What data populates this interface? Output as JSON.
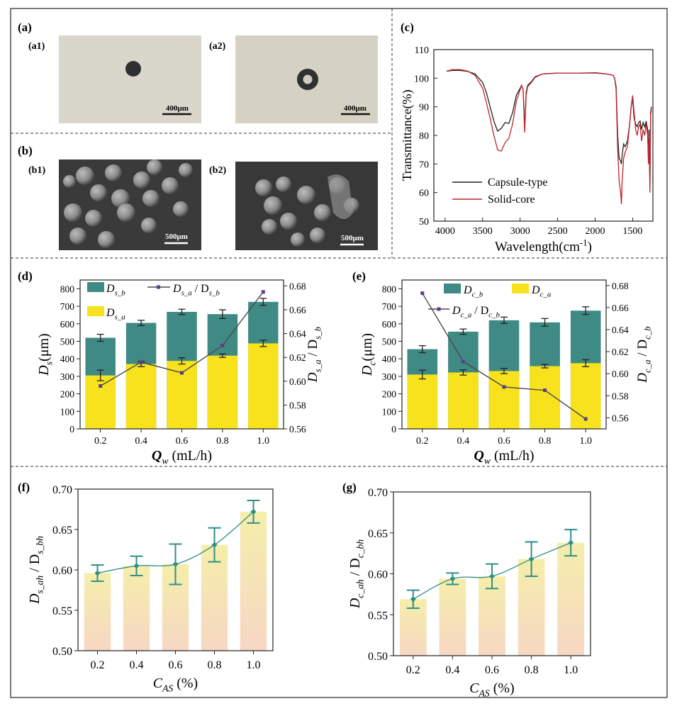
{
  "panels": {
    "a": "(a)",
    "a1": "(a1)",
    "a2": "(a2)",
    "b": "(b)",
    "b1": "(b1)",
    "b2": "(b2)",
    "c": "(c)",
    "d": "(d)",
    "e": "(e)",
    "f": "(f)",
    "g": "(g)"
  },
  "images": {
    "a1_scale": "400μm",
    "a2_scale": "400μm",
    "b1_scale": "500μm",
    "b2_scale": "500μm",
    "optical_bg": "#d9d7cc",
    "sem_bg": "#3a3a3a"
  },
  "colors": {
    "teal": "#3f8a84",
    "yellow": "#f7e21d",
    "purple": "#5b3c8f",
    "dark_line": "#4a4a4a",
    "ftir_black": "#222222",
    "ftir_red": "#c0242b",
    "f_line": "#2f8f86",
    "grad_top": "#f5eeaa",
    "grad_bottom": "#f7d7c4"
  },
  "chart_data": [
    {
      "id": "c",
      "type": "line",
      "ylabel": "Transmittance(%)",
      "xlabel": "Wavelength(cm",
      "xlabel_sup": "-1",
      "xlabel_close": ")",
      "xlim": [
        4150,
        1230
      ],
      "ylim": [
        50,
        110
      ],
      "xticks": [
        4000,
        3500,
        3000,
        2500,
        2000,
        1500
      ],
      "yticks": [
        50,
        60,
        70,
        80,
        90,
        100,
        110
      ],
      "legend_position": "bottom-left",
      "series": [
        {
          "name": "Capsule-type",
          "x": [
            3980,
            3900,
            3800,
            3700,
            3600,
            3500,
            3450,
            3400,
            3350,
            3300,
            3250,
            3200,
            3150,
            3100,
            3050,
            3000,
            2980,
            2960,
            2950,
            2940,
            2930,
            2920,
            2900,
            2850,
            2800,
            2700,
            2500,
            2200,
            2000,
            1850,
            1760,
            1740,
            1720,
            1700,
            1680,
            1660,
            1650,
            1640,
            1620,
            1600,
            1570,
            1540,
            1520,
            1500,
            1480,
            1460,
            1440,
            1420,
            1400,
            1380,
            1360,
            1340,
            1320,
            1300,
            1290,
            1280,
            1270,
            1260,
            1250
          ],
          "y": [
            102.5,
            102.7,
            102.7,
            102.4,
            101.5,
            98.5,
            95,
            90,
            85,
            81.5,
            82.5,
            84.5,
            84.2,
            88,
            94,
            96.5,
            97.5,
            96,
            90,
            83,
            88,
            95,
            97.5,
            98.8,
            100.5,
            101.5,
            101.8,
            101.8,
            101.9,
            101.5,
            101,
            100,
            97,
            80,
            72,
            71,
            70,
            73,
            77,
            76,
            78,
            84,
            90,
            93,
            86,
            84,
            83,
            84.5,
            85,
            82,
            84.5,
            83,
            85,
            82,
            72,
            82,
            62,
            88,
            90
          ]
        },
        {
          "name": "Solid-core",
          "x": [
            3980,
            3900,
            3800,
            3700,
            3600,
            3500,
            3450,
            3400,
            3350,
            3300,
            3250,
            3200,
            3150,
            3100,
            3050,
            3000,
            2980,
            2960,
            2950,
            2940,
            2930,
            2920,
            2900,
            2850,
            2800,
            2700,
            2500,
            2200,
            2000,
            1850,
            1760,
            1740,
            1720,
            1700,
            1680,
            1660,
            1650,
            1640,
            1620,
            1600,
            1570,
            1540,
            1520,
            1500,
            1480,
            1460,
            1440,
            1420,
            1400,
            1380,
            1360,
            1340,
            1320,
            1300,
            1290,
            1280,
            1270,
            1260,
            1250
          ],
          "y": [
            102.5,
            103,
            103,
            102.5,
            101,
            96.5,
            91.5,
            86,
            80,
            75,
            74.5,
            77.5,
            79,
            84,
            92,
            96,
            97.5,
            96,
            89,
            81,
            87,
            94,
            97,
            98.5,
            100.3,
            101.5,
            101.8,
            101.8,
            101.8,
            101.5,
            101,
            100,
            96,
            75,
            64,
            60,
            56,
            64,
            72,
            74,
            76,
            84,
            90,
            94,
            88,
            82,
            80,
            83,
            84,
            78,
            82,
            80,
            84,
            80,
            70,
            80,
            60,
            87,
            89
          ]
        }
      ]
    },
    {
      "id": "d",
      "type": "bar",
      "categories": [
        "0.2",
        "0.4",
        "0.6",
        "0.8",
        "1.0"
      ],
      "ylim": [
        0,
        850
      ],
      "yticks": [
        0,
        100,
        200,
        300,
        400,
        500,
        600,
        700,
        800
      ],
      "y2lim": [
        0.56,
        0.685
      ],
      "y2ticks": [
        0.56,
        0.58,
        0.6,
        0.62,
        0.64,
        0.66,
        0.68
      ],
      "ylabel": "D",
      "ylabel_sub": "s",
      "ylabel_unit": "(μm)",
      "y2label": "D",
      "y2label_sub1": "s_a",
      "y2label_mid": "/ D",
      "y2label_sub2": "s_b",
      "xlabel": "Q",
      "xlabel_sub": "w",
      "xlabel_unit": "(mL/h)",
      "series": [
        {
          "legend_main": "D",
          "legend_sub": "s_b",
          "values": [
            520,
            605,
            668,
            655,
            725
          ],
          "errors": [
            20,
            15,
            15,
            25,
            20
          ]
        },
        {
          "legend_main": "D",
          "legend_sub": "s_a",
          "values": [
            305,
            370,
            388,
            418,
            488
          ],
          "errors": [
            30,
            15,
            18,
            10,
            18
          ]
        },
        {
          "legend_main": "D",
          "legend_sub1": "s_a",
          "legend_mid": "/ D",
          "legend_sub2": "s_b",
          "values": [
            0.596,
            0.616,
            0.607,
            0.63,
            0.675
          ]
        }
      ]
    },
    {
      "id": "e",
      "type": "bar",
      "categories": [
        "0.2",
        "0.4",
        "0.6",
        "0.8",
        "1.0"
      ],
      "ylim": [
        0,
        850
      ],
      "yticks": [
        0,
        100,
        200,
        300,
        400,
        500,
        600,
        700,
        800
      ],
      "y2lim": [
        0.55,
        0.685
      ],
      "y2ticks": [
        0.56,
        0.58,
        0.6,
        0.62,
        0.64,
        0.66,
        0.68
      ],
      "ylabel": "D",
      "ylabel_sub": "c",
      "ylabel_unit": "(μm)",
      "y2label": "D",
      "y2label_sub1": "c_a",
      "y2label_mid": "/ D",
      "y2label_sub2": "c_b",
      "xlabel": "Q",
      "xlabel_sub": "w",
      "xlabel_unit": "(mL/h)",
      "series": [
        {
          "legend_main": "D",
          "legend_sub": "c_b",
          "values": [
            455,
            555,
            620,
            608,
            675
          ],
          "errors": [
            20,
            15,
            18,
            22,
            22
          ]
        },
        {
          "legend_main": "D",
          "legend_sub": "c_a",
          "values": [
            310,
            322,
            330,
            358,
            375
          ],
          "errors": [
            25,
            15,
            15,
            10,
            20
          ]
        },
        {
          "legend_main": "D",
          "legend_sub1": "c_a",
          "legend_mid": "/ D",
          "legend_sub2": "c_b",
          "values": [
            0.673,
            0.611,
            0.588,
            0.585,
            0.559
          ]
        }
      ]
    },
    {
      "id": "f",
      "type": "bar",
      "categories": [
        "0.2",
        "0.4",
        "0.6",
        "0.8",
        "1.0"
      ],
      "ylim": [
        0.5,
        0.7
      ],
      "yticks": [
        0.5,
        0.55,
        0.6,
        0.65,
        0.7
      ],
      "ylabel": "D",
      "ylabel_sub1": "s_ah",
      "ylabel_mid": "/ D",
      "ylabel_sub2": "s_bh",
      "xlabel": "C",
      "xlabel_sub": "AS",
      "xlabel_unit": "(%)",
      "values": [
        0.596,
        0.605,
        0.607,
        0.631,
        0.672
      ],
      "errors": [
        0.01,
        0.012,
        0.025,
        0.021,
        0.014
      ]
    },
    {
      "id": "g",
      "type": "bar",
      "categories": [
        "0.2",
        "0.4",
        "0.6",
        "0.8",
        "1.0"
      ],
      "ylim": [
        0.5,
        0.7
      ],
      "yticks": [
        0.5,
        0.55,
        0.6,
        0.65,
        0.7
      ],
      "ylabel": "D",
      "ylabel_sub1": "c_ah",
      "ylabel_mid": "/ D",
      "ylabel_sub2": "c_bh",
      "xlabel": "C",
      "xlabel_sub": "AS",
      "xlabel_unit": "(%)",
      "values": [
        0.569,
        0.594,
        0.597,
        0.618,
        0.638
      ],
      "errors": [
        0.011,
        0.007,
        0.015,
        0.021,
        0.016
      ]
    }
  ]
}
